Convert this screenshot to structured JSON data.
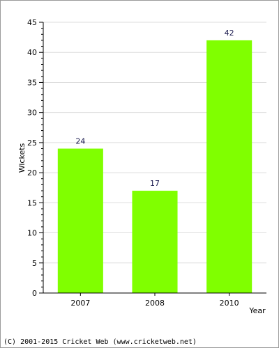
{
  "chart_data": {
    "type": "bar",
    "categories": [
      "2007",
      "2008",
      "2010"
    ],
    "values": [
      24,
      17,
      42
    ],
    "data_labels": [
      "24",
      "17",
      "42"
    ],
    "xlabel": "Year",
    "ylabel": "Wickets",
    "ylim": [
      0,
      45
    ],
    "yticks": [
      "0",
      "5",
      "10",
      "15",
      "20",
      "25",
      "30",
      "35",
      "40",
      "45"
    ],
    "grid": true,
    "bar_color": "#80ff00",
    "grid_color": "#dddddd"
  },
  "footer": {
    "copyright": "(C) 2001-2015 Cricket Web (www.cricketweb.net)"
  }
}
